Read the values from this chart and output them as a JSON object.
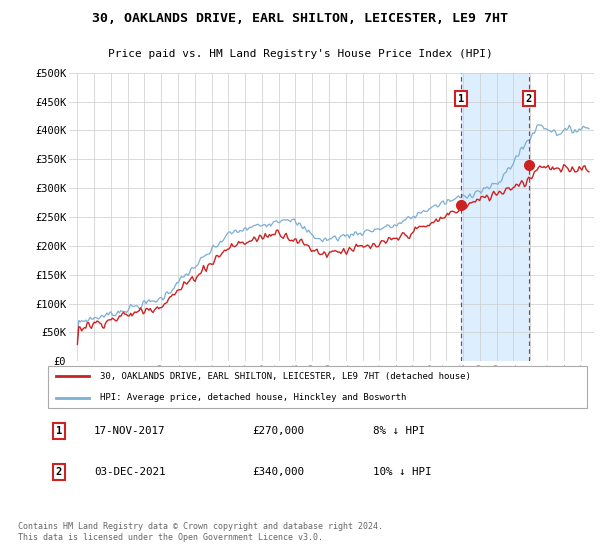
{
  "title": "30, OAKLANDS DRIVE, EARL SHILTON, LEICESTER, LE9 7HT",
  "subtitle": "Price paid vs. HM Land Registry's House Price Index (HPI)",
  "legend_line1": "30, OAKLANDS DRIVE, EARL SHILTON, LEICESTER, LE9 7HT (detached house)",
  "legend_line2": "HPI: Average price, detached house, Hinckley and Bosworth",
  "annotation1_date": "17-NOV-2017",
  "annotation1_price": "£270,000",
  "annotation1_hpi": "8% ↓ HPI",
  "annotation2_date": "03-DEC-2021",
  "annotation2_price": "£340,000",
  "annotation2_hpi": "10% ↓ HPI",
  "footer": "Contains HM Land Registry data © Crown copyright and database right 2024.\nThis data is licensed under the Open Government Licence v3.0.",
  "hpi_color": "#7bafd4",
  "price_color": "#cc2222",
  "background_color": "#ffffff",
  "shaded_color": "#ddeeff",
  "ylim": [
    0,
    500000
  ],
  "yticks": [
    0,
    50000,
    100000,
    150000,
    200000,
    250000,
    300000,
    350000,
    400000,
    450000,
    500000
  ],
  "ytick_labels": [
    "£0",
    "£50K",
    "£100K",
    "£150K",
    "£200K",
    "£250K",
    "£300K",
    "£350K",
    "£400K",
    "£450K",
    "£500K"
  ],
  "marker1_x_year": 2017.88,
  "marker1_y": 270000,
  "marker2_x_year": 2021.92,
  "marker2_y": 340000,
  "shade_x1": 2017.88,
  "shade_x2": 2021.92,
  "xlim_left": 1994.5,
  "xlim_right": 2025.8
}
